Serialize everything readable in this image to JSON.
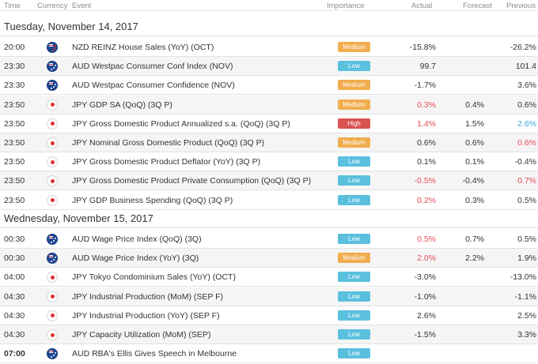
{
  "columns": {
    "time": "Time",
    "currency": "Currency",
    "event": "Event",
    "importance": "Importance",
    "actual": "Actual",
    "forecast": "Forecast",
    "previous": "Previous"
  },
  "colors": {
    "low": "#5bc0de",
    "medium": "#f0ad4e",
    "high": "#d9534f",
    "worse": "#e84c5a",
    "better": "#3fa7dc"
  },
  "groups": [
    {
      "date": "Tuesday, November 14, 2017",
      "rows": [
        {
          "time": "20:00",
          "flag": "nz",
          "event": "NZD REINZ House Sales (YoY) (OCT)",
          "importance": "Medium",
          "actual": "-15.8%",
          "forecast": "",
          "previous": "-26.2%"
        },
        {
          "time": "23:30",
          "flag": "au",
          "event": "AUD Westpac Consumer Conf Index (NOV)",
          "importance": "Low",
          "actual": "99.7",
          "forecast": "",
          "previous": "101.4"
        },
        {
          "time": "23:30",
          "flag": "au",
          "event": "AUD Westpac Consumer Confidence (NOV)",
          "importance": "Medium",
          "actual": "-1.7%",
          "forecast": "",
          "previous": "3.6%"
        },
        {
          "time": "23:50",
          "flag": "jp",
          "event": "JPY GDP SA (QoQ) (3Q P)",
          "importance": "Medium",
          "actual": "0.3%",
          "actual_tone": "neg",
          "forecast": "0.4%",
          "previous": "0.6%"
        },
        {
          "time": "23:50",
          "flag": "jp",
          "event": "JPY Gross Domestic Product Annualized s.a. (QoQ) (3Q P)",
          "importance": "High",
          "actual": "1.4%",
          "actual_tone": "neg",
          "forecast": "1.5%",
          "previous": "2.6%",
          "previous_tone": "pos"
        },
        {
          "time": "23:50",
          "flag": "jp",
          "event": "JPY Nominal Gross Domestic Product (QoQ) (3Q P)",
          "importance": "Medium",
          "actual": "0.6%",
          "forecast": "0.6%",
          "previous": "0.6%",
          "previous_tone": "neg"
        },
        {
          "time": "23:50",
          "flag": "jp",
          "event": "JPY Gross Domestic Product Deflator (YoY) (3Q P)",
          "importance": "Low",
          "actual": "0.1%",
          "forecast": "0.1%",
          "previous": "-0.4%"
        },
        {
          "time": "23:50",
          "flag": "jp",
          "event": "JPY Gross Domestic Product Private Consumption (QoQ) (3Q P)",
          "importance": "Low",
          "actual": "-0.5%",
          "actual_tone": "neg",
          "forecast": "-0.4%",
          "previous": "0.7%",
          "previous_tone": "neg"
        },
        {
          "time": "23:50",
          "flag": "jp",
          "event": "JPY GDP Business Spending (QoQ) (3Q P)",
          "importance": "Low",
          "actual": "0.2%",
          "actual_tone": "neg",
          "forecast": "0.3%",
          "previous": "0.5%"
        }
      ]
    },
    {
      "date": "Wednesday, November 15, 2017",
      "rows": [
        {
          "time": "00:30",
          "flag": "au",
          "event": "AUD Wage Price Index (QoQ) (3Q)",
          "importance": "Low",
          "actual": "0.5%",
          "actual_tone": "neg",
          "forecast": "0.7%",
          "previous": "0.5%"
        },
        {
          "time": "00:30",
          "flag": "au",
          "event": "AUD Wage Price Index (YoY) (3Q)",
          "importance": "Medium",
          "actual": "2.0%",
          "actual_tone": "neg",
          "forecast": "2.2%",
          "previous": "1.9%"
        },
        {
          "time": "04:00",
          "flag": "jp",
          "event": "JPY Tokyo Condominium Sales (YoY) (OCT)",
          "importance": "Low",
          "actual": "-3.0%",
          "forecast": "",
          "previous": "-13.0%"
        },
        {
          "time": "04:30",
          "flag": "jp",
          "event": "JPY Industrial Production (MoM) (SEP F)",
          "importance": "Low",
          "actual": "-1.0%",
          "forecast": "",
          "previous": "-1.1%"
        },
        {
          "time": "04:30",
          "flag": "jp",
          "event": "JPY Industrial Production (YoY) (SEP F)",
          "importance": "Low",
          "actual": "2.6%",
          "forecast": "",
          "previous": "2.5%"
        },
        {
          "time": "04:30",
          "flag": "jp",
          "event": "JPY Capacity Utilization (MoM) (SEP)",
          "importance": "Low",
          "actual": "-1.5%",
          "forecast": "",
          "previous": "3.3%"
        },
        {
          "time": "07:00",
          "time_bold": true,
          "flag": "au",
          "event": "AUD RBA's Ellis Gives Speech in Melbourne",
          "importance": "Low",
          "actual": "",
          "forecast": "",
          "previous": ""
        }
      ]
    }
  ]
}
